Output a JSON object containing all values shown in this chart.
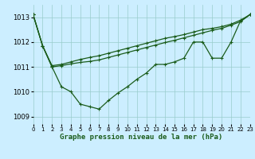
{
  "xlabel": "Graphe pression niveau de la mer (hPa)",
  "xlim": [
    0,
    23
  ],
  "ylim": [
    1008.7,
    1013.5
  ],
  "yticks": [
    1009,
    1010,
    1011,
    1012,
    1013
  ],
  "xticks": [
    0,
    1,
    2,
    3,
    4,
    5,
    6,
    7,
    8,
    9,
    10,
    11,
    12,
    13,
    14,
    15,
    16,
    17,
    18,
    19,
    20,
    21,
    22,
    23
  ],
  "background_color": "#cceeff",
  "grid_color": "#99cccc",
  "line_color": "#1a5c1a",
  "line1": [
    1013.1,
    1011.85,
    1011.0,
    1010.2,
    1010.0,
    1009.5,
    1009.4,
    1009.3,
    1009.65,
    1009.95,
    1010.2,
    1010.5,
    1010.75,
    1011.1,
    1011.1,
    1011.2,
    1011.35,
    1012.0,
    1012.0,
    1011.35,
    1011.35,
    1012.0,
    1012.85,
    1013.1
  ],
  "line2": [
    1013.1,
    1011.85,
    1011.0,
    1011.05,
    1011.12,
    1011.18,
    1011.22,
    1011.28,
    1011.38,
    1011.48,
    1011.58,
    1011.68,
    1011.78,
    1011.88,
    1011.98,
    1012.07,
    1012.17,
    1012.27,
    1012.37,
    1012.47,
    1012.55,
    1012.68,
    1012.82,
    1013.1
  ],
  "line3": [
    1013.1,
    1011.85,
    1011.05,
    1011.1,
    1011.2,
    1011.3,
    1011.38,
    1011.45,
    1011.55,
    1011.65,
    1011.75,
    1011.85,
    1011.95,
    1012.05,
    1012.15,
    1012.22,
    1012.3,
    1012.4,
    1012.5,
    1012.55,
    1012.62,
    1012.72,
    1012.88,
    1013.1
  ]
}
